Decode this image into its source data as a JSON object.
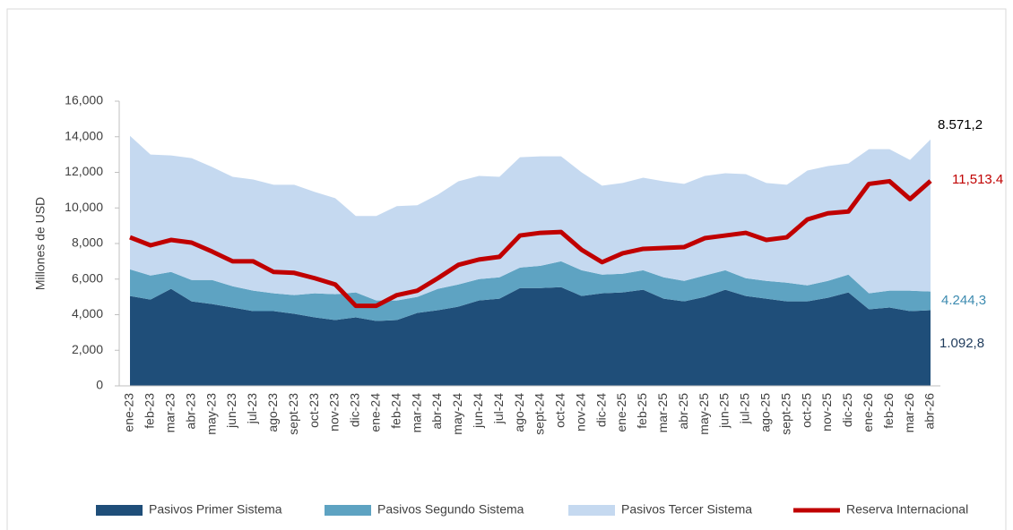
{
  "chart_data": {
    "type": "stacked-area-line",
    "y_label": "Millones de USD",
    "categories": [
      "ene-23",
      "feb-23",
      "mar-23",
      "abr-23",
      "may-23",
      "jun-23",
      "jul-23",
      "ago-23",
      "sept-23",
      "oct-23",
      "nov-23",
      "dic-23",
      "ene-24",
      "feb-24",
      "mar-24",
      "abr-24",
      "may-24",
      "jun-24",
      "jul-24",
      "ago-24",
      "sept-24",
      "oct-24",
      "nov-24",
      "dic-24",
      "ene-25",
      "feb-25",
      "mar-25",
      "abr-25",
      "may-25",
      "jun-25",
      "jul-25",
      "ago-25",
      "sept-25",
      "oct-25",
      "nov-25",
      "dic-25",
      "ene-26",
      "feb-26",
      "mar-26",
      "abr-26"
    ],
    "series": [
      {
        "name": "Pasivos Primer Sistema",
        "color": "#1f4e79",
        "kind": "area",
        "values": [
          5050,
          4850,
          5450,
          4750,
          4600,
          4400,
          4200,
          4200,
          4050,
          3850,
          3700,
          3850,
          3650,
          3700,
          4100,
          4250,
          4450,
          4800,
          4900,
          5500,
          5500,
          5550,
          5050,
          5200,
          5250,
          5400,
          4900,
          4750,
          5000,
          5400,
          5050,
          4900,
          4750,
          4750,
          4950,
          5250,
          4300,
          4400,
          4200,
          4250
        ]
      },
      {
        "name": "Pasivos Segundo Sistema",
        "color": "#5ea3c2",
        "kind": "area",
        "values": [
          1500,
          1350,
          950,
          1200,
          1350,
          1200,
          1150,
          1000,
          1050,
          1350,
          1450,
          1400,
          1150,
          1100,
          900,
          1200,
          1250,
          1200,
          1200,
          1150,
          1250,
          1450,
          1450,
          1050,
          1050,
          1100,
          1200,
          1150,
          1200,
          1100,
          1000,
          1000,
          1050,
          900,
          950,
          1000,
          900,
          950,
          1150,
          1050
        ]
      },
      {
        "name": "Pasivos Tercer Sistema",
        "color": "#c5d9f0",
        "kind": "area",
        "values": [
          7500,
          6800,
          6550,
          6850,
          6350,
          6150,
          6250,
          6100,
          6200,
          5700,
          5400,
          4300,
          4750,
          5300,
          5150,
          5300,
          5800,
          5800,
          5650,
          6200,
          6150,
          5900,
          5500,
          5000,
          5100,
          5200,
          5400,
          5450,
          5600,
          5450,
          5850,
          5500,
          5500,
          6450,
          6450,
          6250,
          8100,
          7950,
          7350,
          8550
        ]
      },
      {
        "name": "Reserva Internacional",
        "color": "#c00000",
        "kind": "line",
        "values": [
          8350,
          7900,
          8200,
          8050,
          7550,
          7000,
          7000,
          6400,
          6350,
          6050,
          5700,
          4500,
          4500,
          5100,
          5350,
          6050,
          6800,
          7100,
          7250,
          8450,
          8600,
          8650,
          7650,
          6950,
          7450,
          7700,
          7750,
          7800,
          8300,
          8450,
          8600,
          8200,
          8350,
          9350,
          9700,
          9800,
          11350,
          11500,
          10500,
          11513.4
        ]
      }
    ],
    "annotations": [
      {
        "text": "8.571,2",
        "color": "#000000"
      },
      {
        "text": "11,513.4",
        "color": "#c00000"
      },
      {
        "text": "4.244,3",
        "color": "#3d8bb0"
      },
      {
        "text": "1.092,8",
        "color": "#1f3b5c"
      }
    ],
    "ylim": [
      0,
      16000
    ],
    "yticks": [
      0,
      {
        "value": 2000,
        "label": "2,000"
      },
      {
        "value": 4000,
        "label": "4,000"
      },
      {
        "value": 6000,
        "label": "6,000"
      },
      {
        "value": 8000,
        "label": "8,000"
      },
      {
        "value": 10000,
        "label": "10,000"
      },
      {
        "value": 12000,
        "label": "12,000"
      },
      {
        "value": 14000,
        "label": "14,000"
      },
      {
        "value": 16000,
        "label": "16,000"
      }
    ],
    "legend": "bottom"
  }
}
